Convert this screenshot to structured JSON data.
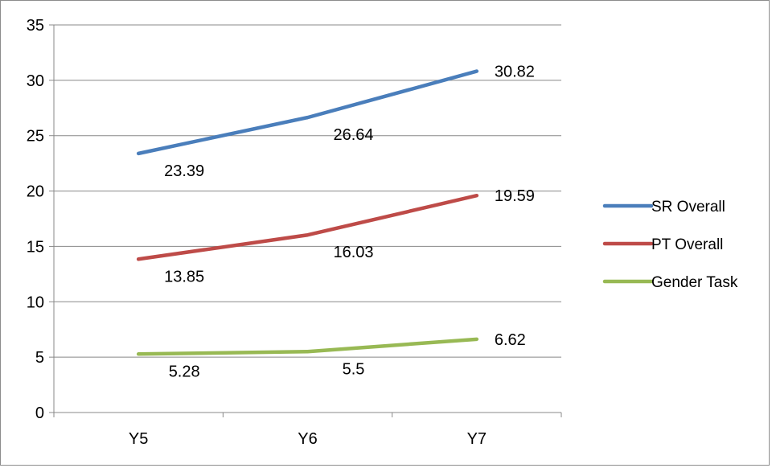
{
  "chart_data": {
    "type": "line",
    "title": "",
    "xlabel": "",
    "ylabel": "",
    "categories": [
      "Y5",
      "Y6",
      "Y7"
    ],
    "ylim": [
      0,
      35
    ],
    "yticks": [
      0,
      5,
      10,
      15,
      20,
      25,
      30,
      35
    ],
    "grid": "horizontal",
    "legend": "right",
    "series": [
      {
        "name": "SR Overall",
        "color": "#4a7ebb",
        "values": [
          23.39,
          26.64,
          30.82
        ],
        "labels": [
          "23.39",
          "26.64",
          "30.82"
        ]
      },
      {
        "name": "PT Overall",
        "color": "#be4b48",
        "values": [
          13.85,
          16.03,
          19.59
        ],
        "labels": [
          "13.85",
          "16.03",
          "19.59"
        ]
      },
      {
        "name": "Gender Task",
        "color": "#98b954",
        "values": [
          5.28,
          5.5,
          6.62
        ],
        "labels": [
          "5.28",
          "5.5",
          "6.62"
        ]
      }
    ]
  }
}
